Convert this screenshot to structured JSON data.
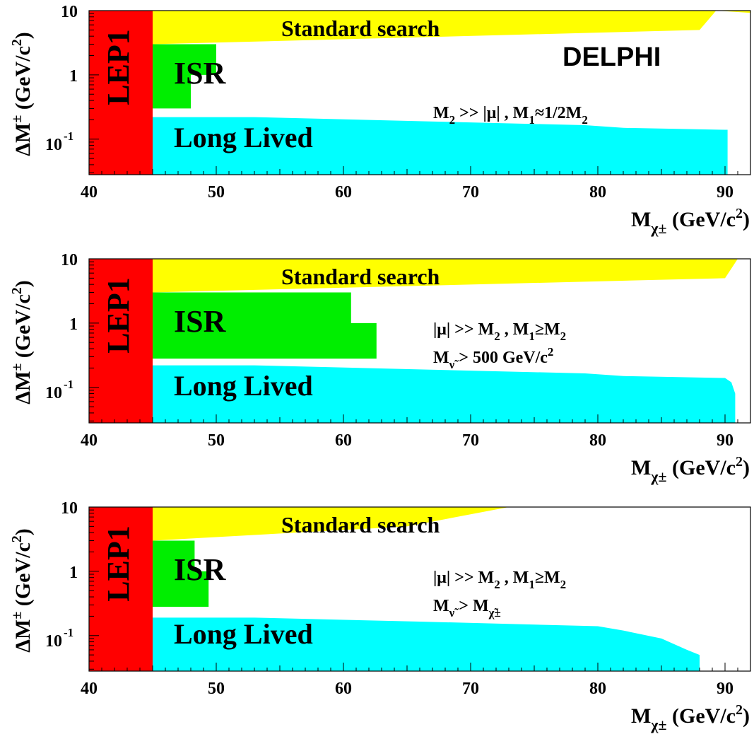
{
  "colors": {
    "lep1": "#ff0000",
    "standard_search": "#ffff00",
    "isr": "#00ee00",
    "long_lived": "#00ffff",
    "axes": "#000000"
  },
  "chart_data": [
    {
      "type": "area",
      "xlim": [
        40,
        92
      ],
      "ylim": [
        0.028,
        10
      ],
      "yscale": "log",
      "grid": false,
      "x_ticks": [
        {
          "label": "40",
          "value": 40
        },
        {
          "label": "50",
          "value": 50
        },
        {
          "label": "60",
          "value": 60
        },
        {
          "label": "70",
          "value": 70
        },
        {
          "label": "80",
          "value": 80
        },
        {
          "label": "90",
          "value": 90
        }
      ],
      "y_ticks": [
        {
          "label": "10",
          "value": 10
        },
        {
          "label": "1",
          "value": 1
        },
        {
          "label": "10",
          "sup": "-1",
          "value": 0.1
        }
      ],
      "xlabel": {
        "main": "M",
        "sub": "χ±",
        "unit": " (GeV/c",
        "sup": "2",
        "close": ")"
      },
      "ylabel": {
        "main": "ΔM",
        "sup1": "±",
        "unit": " (GeV/c",
        "sup2": "2",
        "close": ")"
      },
      "experiment_label": "DELPHI",
      "annotations": [
        {
          "runs": [
            {
              "t": "M",
              "s": "base"
            },
            {
              "t": "2",
              "s": "sub"
            },
            {
              "t": " >> |μ| , M",
              "s": "base"
            },
            {
              "t": "1",
              "s": "sub"
            },
            {
              "t": "≈1/2M",
              "s": "base"
            },
            {
              "t": "2",
              "s": "sub"
            }
          ]
        }
      ],
      "series": [
        {
          "name": "LEP1",
          "color": "#ff0000",
          "points": [
            [
              40,
              10
            ],
            [
              45,
              10
            ],
            [
              45,
              0.028
            ],
            [
              40,
              0.028
            ]
          ]
        },
        {
          "name": "Standard search",
          "color": "#ffff00",
          "points": [
            [
              45,
              10
            ],
            [
              92,
              10
            ],
            [
              92,
              9.2
            ],
            [
              89.3,
              10
            ],
            [
              88,
              5
            ],
            [
              45,
              3
            ]
          ]
        },
        {
          "name": "ISR",
          "color": "#00ee00",
          "points": [
            [
              45,
              3
            ],
            [
              50,
              3
            ],
            [
              50,
              1
            ],
            [
              48,
              1
            ],
            [
              48,
              0.3
            ],
            [
              45,
              0.3
            ]
          ]
        },
        {
          "name": "Long Lived",
          "color": "#00ffff",
          "points": [
            [
              45,
              0.22
            ],
            [
              53,
              0.22
            ],
            [
              66,
              0.19
            ],
            [
              79,
              0.165
            ],
            [
              82,
              0.15
            ],
            [
              90,
              0.14
            ],
            [
              90.2,
              0.14
            ],
            [
              90.2,
              0.028
            ],
            [
              45,
              0.028
            ]
          ]
        }
      ]
    },
    {
      "type": "area",
      "xlim": [
        40,
        92
      ],
      "ylim": [
        0.028,
        10
      ],
      "yscale": "log",
      "grid": false,
      "x_ticks": [
        {
          "label": "40",
          "value": 40
        },
        {
          "label": "50",
          "value": 50
        },
        {
          "label": "60",
          "value": 60
        },
        {
          "label": "70",
          "value": 70
        },
        {
          "label": "80",
          "value": 80
        },
        {
          "label": "90",
          "value": 90
        }
      ],
      "y_ticks": [
        {
          "label": "10",
          "value": 10
        },
        {
          "label": "1",
          "value": 1
        },
        {
          "label": "10",
          "sup": "-1",
          "value": 0.1
        }
      ],
      "xlabel": {
        "main": "M",
        "sub": "χ±",
        "unit": " (GeV/c",
        "sup": "2",
        "close": ")"
      },
      "ylabel": {
        "main": "ΔM",
        "sup1": "±",
        "unit": " (GeV/c",
        "sup2": "2",
        "close": ")"
      },
      "experiment_label": "",
      "annotations": [
        {
          "runs": [
            {
              "t": "|μ| >> M",
              "s": "base"
            },
            {
              "t": "2",
              "s": "sub"
            },
            {
              "t": " , M",
              "s": "base"
            },
            {
              "t": "1",
              "s": "sub"
            },
            {
              "t": "≥M",
              "s": "base"
            },
            {
              "t": "2",
              "s": "sub"
            }
          ]
        },
        {
          "runs": [
            {
              "t": "M",
              "s": "base"
            },
            {
              "t": "ν̃",
              "s": "sub"
            },
            {
              "t": " > 500 GeV/c",
              "s": "base"
            },
            {
              "t": "2",
              "s": "sup"
            }
          ]
        }
      ],
      "series": [
        {
          "name": "LEP1",
          "color": "#ff0000",
          "points": [
            [
              40,
              10
            ],
            [
              45,
              10
            ],
            [
              45,
              0.028
            ],
            [
              40,
              0.028
            ]
          ]
        },
        {
          "name": "Standard search",
          "color": "#ffff00",
          "points": [
            [
              45,
              10
            ],
            [
              91,
              10
            ],
            [
              90,
              5
            ],
            [
              45,
              3
            ]
          ]
        },
        {
          "name": "ISR",
          "color": "#00ee00",
          "points": [
            [
              45,
              3
            ],
            [
              60.6,
              3
            ],
            [
              60.6,
              1
            ],
            [
              62.6,
              1
            ],
            [
              62.6,
              0.28
            ],
            [
              45,
              0.28
            ]
          ]
        },
        {
          "name": "Long Lived",
          "color": "#00ffff",
          "points": [
            [
              45,
              0.22
            ],
            [
              53,
              0.22
            ],
            [
              66,
              0.19
            ],
            [
              79,
              0.165
            ],
            [
              82,
              0.15
            ],
            [
              90,
              0.14
            ],
            [
              90.5,
              0.12
            ],
            [
              90.8,
              0.08
            ],
            [
              90.8,
              0.028
            ],
            [
              45,
              0.028
            ]
          ]
        }
      ]
    },
    {
      "type": "area",
      "xlim": [
        40,
        92
      ],
      "ylim": [
        0.028,
        10
      ],
      "yscale": "log",
      "grid": false,
      "x_ticks": [
        {
          "label": "40",
          "value": 40
        },
        {
          "label": "50",
          "value": 50
        },
        {
          "label": "60",
          "value": 60
        },
        {
          "label": "70",
          "value": 70
        },
        {
          "label": "80",
          "value": 80
        },
        {
          "label": "90",
          "value": 90
        }
      ],
      "y_ticks": [
        {
          "label": "10",
          "value": 10
        },
        {
          "label": "1",
          "value": 1
        },
        {
          "label": "10",
          "sup": "-1",
          "value": 0.1
        }
      ],
      "xlabel": {
        "main": "M",
        "sub": "χ±",
        "unit": " (GeV/c",
        "sup": "2",
        "close": ")"
      },
      "ylabel": {
        "main": "ΔM",
        "sup1": "±",
        "unit": " (GeV/c",
        "sup2": "2",
        "close": ")"
      },
      "experiment_label": "",
      "annotations": [
        {
          "runs": [
            {
              "t": "|μ| >> M",
              "s": "base"
            },
            {
              "t": "2",
              "s": "sub"
            },
            {
              "t": " , M",
              "s": "base"
            },
            {
              "t": "1",
              "s": "sub"
            },
            {
              "t": "≥M",
              "s": "base"
            },
            {
              "t": "2",
              "s": "sub"
            }
          ]
        },
        {
          "runs": [
            {
              "t": "M",
              "s": "base"
            },
            {
              "t": "ν̃",
              "s": "sub"
            },
            {
              "t": " > M",
              "s": "base"
            },
            {
              "t": "χ̃±",
              "s": "sub"
            }
          ]
        }
      ],
      "series": [
        {
          "name": "LEP1",
          "color": "#ff0000",
          "points": [
            [
              40,
              10
            ],
            [
              45,
              10
            ],
            [
              45,
              0.028
            ],
            [
              40,
              0.028
            ]
          ]
        },
        {
          "name": "Standard search",
          "color": "#ffff00",
          "points": [
            [
              45,
              10
            ],
            [
              73,
              10
            ],
            [
              65,
              5
            ],
            [
              45,
              3
            ]
          ]
        },
        {
          "name": "ISR",
          "color": "#00ee00",
          "points": [
            [
              45,
              3
            ],
            [
              48.3,
              3
            ],
            [
              48.3,
              1
            ],
            [
              49.4,
              1
            ],
            [
              49.4,
              0.28
            ],
            [
              45,
              0.28
            ]
          ]
        },
        {
          "name": "Long Lived",
          "color": "#00ffff",
          "points": [
            [
              45,
              0.19
            ],
            [
              53,
              0.19
            ],
            [
              66,
              0.165
            ],
            [
              80,
              0.14
            ],
            [
              82,
              0.12
            ],
            [
              85,
              0.09
            ],
            [
              87,
              0.06
            ],
            [
              88,
              0.05
            ],
            [
              88,
              0.028
            ],
            [
              45,
              0.028
            ]
          ]
        }
      ]
    }
  ]
}
